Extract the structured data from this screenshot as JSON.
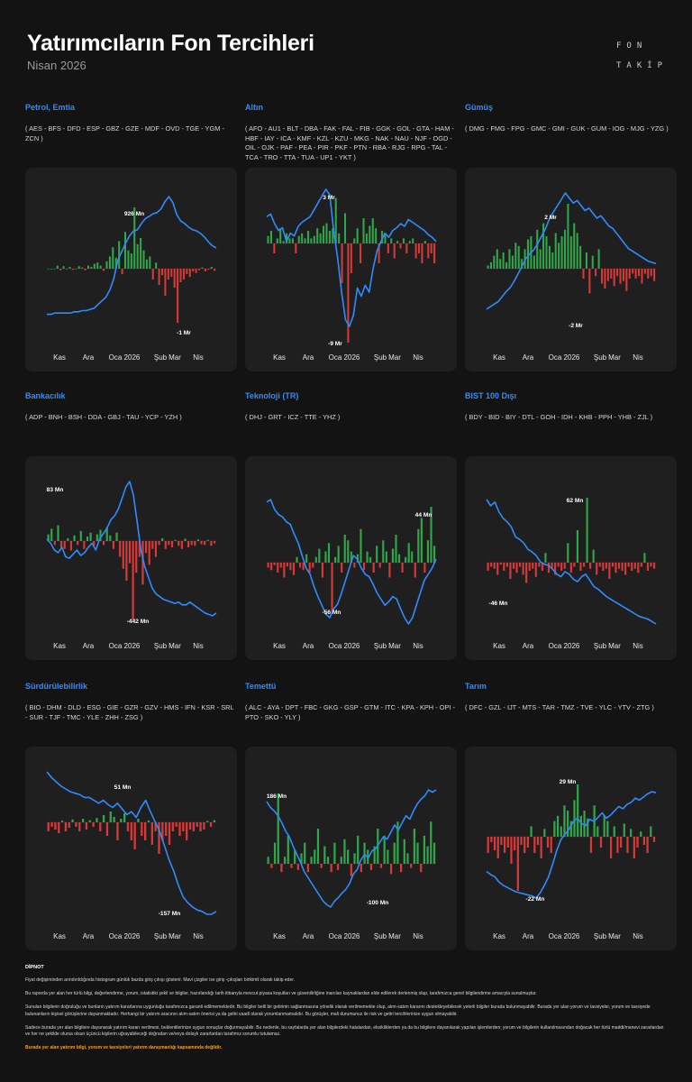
{
  "header": {
    "title": "Yatırımcıların Fon Tercihleri",
    "subtitle": "Nisan 2026",
    "logo": [
      "FON",
      "TAKİP"
    ]
  },
  "colors": {
    "line": "#2f8cff",
    "inflow": "#2fa84a",
    "outflow": "#d83a3a",
    "title_accent": "#2f8cff",
    "warning": "#f7a21b"
  },
  "chart_data": [
    {
      "type": "bar+line",
      "name": "Petrol, Emtia",
      "codes": "( AES - BFS - DFD - ESP - GBZ - GZE - MDF - OVD - TGE - YGM - ZCN )",
      "x_ticks": [
        "Kas",
        "Ara",
        "Oca 2026",
        "Şub",
        "Mar",
        "Nis"
      ],
      "max_label": "926 Mn",
      "min_label": "-1 Mr",
      "cumulative_trend": [
        0.04,
        0.06,
        0.08,
        0.14,
        0.22,
        0.48,
        0.72,
        0.8,
        0.98,
        0.62,
        0.56
      ],
      "daily_flow_pattern": "zero until Dec, growth through Jan, large inflows Jan-Feb, large outflows late Feb",
      "bars": [
        0,
        0,
        0,
        0.05,
        -0.03,
        0.04,
        0,
        0.03,
        -0.02,
        0,
        0.04,
        0.02,
        -0.03,
        0.05,
        0.03,
        0.08,
        0.1,
        0.05,
        -0.04,
        0.12,
        0.2,
        0.35,
        0.18,
        0.45,
        -0.1,
        0.6,
        0.3,
        0.25,
        1.0,
        0.4,
        0.5,
        0.3,
        0.15,
        0.2,
        -0.2,
        0.1,
        -0.3,
        -0.12,
        -0.5,
        -0.2,
        -0.15,
        -0.35,
        -1.0,
        -0.25,
        -0.2,
        -0.1,
        -0.15,
        -0.05,
        -0.08,
        -0.03,
        0.02,
        -0.05,
        -0.02,
        0.03,
        -0.04
      ],
      "line": [
        0.04,
        0.04,
        0.05,
        0.05,
        0.05,
        0.05,
        0.05,
        0.06,
        0.06,
        0.07,
        0.07,
        0.08,
        0.09,
        0.12,
        0.15,
        0.18,
        0.24,
        0.33,
        0.48,
        0.55,
        0.62,
        0.68,
        0.72,
        0.73,
        0.78,
        0.82,
        0.84,
        0.86,
        0.87,
        0.9,
        0.96,
        1.0,
        0.95,
        0.85,
        0.8,
        0.78,
        0.75,
        0.73,
        0.72,
        0.7,
        0.67,
        0.63,
        0.6,
        0.58
      ]
    },
    {
      "type": "bar+line",
      "name": "Altın",
      "codes": "( AFO - AU1 - BLT - DBA - FAK - FAL - FIB - GGK - GOL - GTA - HAM - HBF - IAY - ICA - KMF - KZL - KZU - MKG - NAK - NAU - NJF - OGD - OIL - OJK - PAF - PEA - PIR - PKF - PTN - RBA - RJG - RPG - TAL - TCA - TRO - TTA - TUA - UP1 - YKT )",
      "x_ticks": [
        "Kas",
        "Ara",
        "Oca 2026",
        "Şub",
        "Mar",
        "Nis"
      ],
      "max_label": "3 Mr",
      "min_label": "-9 Mr",
      "bars": [
        0.15,
        0.25,
        -0.1,
        0.1,
        0.3,
        0.05,
        0.2,
        0.1,
        0.1,
        -0.1,
        0.15,
        0.2,
        0.1,
        0.25,
        0.1,
        0.15,
        0.3,
        0.2,
        0.35,
        0.4,
        0.25,
        0.3,
        0.9,
        0.2,
        -0.4,
        0.6,
        -1.0,
        -0.3,
        0.1,
        0.3,
        -0.2,
        0.5,
        0.2,
        0.35,
        0.5,
        0.3,
        -0.2,
        0.25,
        0.2,
        -0.1,
        0.1,
        -0.15,
        0.05,
        -0.05,
        0.1,
        -0.1,
        0.05,
        0.1,
        -0.15,
        -0.1,
        -0.2,
        0.05,
        -0.15,
        -0.1,
        -0.2
      ],
      "line": [
        0.8,
        0.82,
        0.75,
        0.7,
        0.72,
        0.62,
        0.68,
        0.66,
        0.73,
        0.76,
        0.78,
        0.8,
        0.85,
        0.9,
        0.95,
        1.0,
        0.96,
        0.7,
        0.5,
        0.25,
        0.05,
        0.0,
        0.08,
        0.28,
        0.22,
        0.3,
        0.25,
        0.42,
        0.55,
        0.62,
        0.68,
        0.65,
        0.7,
        0.72,
        0.75,
        0.73,
        0.78,
        0.76,
        0.74,
        0.72,
        0.7,
        0.67,
        0.65,
        0.62
      ]
    },
    {
      "type": "bar+line",
      "name": "Gümüş",
      "codes": "( DMG - FMG - FPG - GMC - GMI - GUK - GUM - IOG - MJG - YZG )",
      "x_ticks": [
        "Kas",
        "Ara",
        "Oca 2026",
        "Şub",
        "Mar",
        "Nis"
      ],
      "max_label": "2 Mr",
      "min_label": "-2 Mr",
      "bars": [
        0.05,
        0.1,
        0.2,
        0.3,
        0.15,
        0.25,
        0.1,
        0.3,
        0.2,
        0.4,
        0.35,
        0.15,
        0.3,
        0.45,
        0.5,
        0.2,
        0.6,
        0.3,
        0.7,
        0.5,
        0.35,
        0.25,
        0.55,
        0.4,
        0.5,
        0.6,
        1.0,
        0.5,
        0.7,
        0.55,
        0.35,
        -0.2,
        0.25,
        -0.5,
        0.2,
        -0.15,
        0.3,
        -0.3,
        -0.4,
        -0.25,
        -0.2,
        -0.35,
        -0.15,
        -0.3,
        -0.25,
        -0.45,
        -0.2,
        -0.1,
        -0.2,
        -0.15,
        -0.3,
        -0.1,
        -0.2,
        -0.15,
        -0.25
      ],
      "line": [
        0.08,
        0.1,
        0.12,
        0.14,
        0.18,
        0.22,
        0.25,
        0.3,
        0.36,
        0.42,
        0.48,
        0.52,
        0.55,
        0.6,
        0.66,
        0.72,
        0.8,
        0.85,
        0.9,
        0.95,
        1.0,
        0.96,
        0.92,
        0.94,
        0.9,
        0.86,
        0.88,
        0.84,
        0.8,
        0.82,
        0.78,
        0.74,
        0.72,
        0.68,
        0.64,
        0.6,
        0.56,
        0.54,
        0.52,
        0.5,
        0.48,
        0.46,
        0.45,
        0.44
      ]
    },
    {
      "type": "bar+line",
      "name": "Bankacılık",
      "codes": "( ADP - BNH - BSH - DDA - GBJ - TAU - YCP - YZH )",
      "x_ticks": [
        "Kas",
        "Ara",
        "Oca 2026",
        "Şub",
        "Mar",
        "Nis"
      ],
      "max_label": "83 Mn",
      "min_label": "-442 Mn",
      "bars": [
        0.12,
        0.22,
        -0.05,
        0.28,
        -0.08,
        -0.1,
        0.05,
        -0.12,
        0.1,
        -0.05,
        0.18,
        -0.1,
        0.08,
        0.15,
        -0.06,
        0.12,
        0.2,
        -0.05,
        0.25,
        0.1,
        -0.1,
        0.15,
        -0.2,
        -0.35,
        -0.5,
        -0.28,
        -1.0,
        -0.4,
        -0.2,
        -0.55,
        -0.15,
        -0.3,
        -0.1,
        -0.2,
        -0.05,
        0.05,
        -0.1,
        -0.05,
        -0.08,
        0.02,
        -0.06,
        -0.1,
        0.04,
        -0.08,
        -0.05,
        -0.06,
        0.03,
        -0.04,
        -0.05,
        0.02,
        -0.06,
        -0.03
      ],
      "line": [
        0.58,
        0.55,
        0.5,
        0.48,
        0.52,
        0.45,
        0.44,
        0.47,
        0.5,
        0.46,
        0.48,
        0.52,
        0.55,
        0.5,
        0.58,
        0.62,
        0.66,
        0.72,
        0.75,
        0.8,
        0.88,
        0.96,
        1.0,
        0.9,
        0.7,
        0.5,
        0.38,
        0.3,
        0.22,
        0.18,
        0.16,
        0.14,
        0.13,
        0.12,
        0.11,
        0.12,
        0.1,
        0.1,
        0.12,
        0.1,
        0.08,
        0.06,
        0.04,
        0.03,
        0.02,
        0.04
      ]
    },
    {
      "type": "bar+line",
      "name": "Teknoloji (TR)",
      "codes": "( DHJ - GRT - ICZ - TTE - YHZ )",
      "x_ticks": [
        "Kas",
        "Ara",
        "Oca 2026",
        "Şub",
        "Mar",
        "Nis"
      ],
      "max_label": "44 Mn",
      "min_label": "-56 Mn",
      "bars": [
        -0.1,
        -0.15,
        -0.05,
        -0.2,
        -0.1,
        -0.3,
        -0.08,
        -0.15,
        -0.25,
        0.1,
        -0.1,
        -0.15,
        0.15,
        -0.2,
        -0.1,
        0.1,
        0.25,
        -0.3,
        0.2,
        0.35,
        -1.0,
        0.1,
        0.3,
        -0.2,
        0.5,
        0.4,
        0.2,
        -0.1,
        0.15,
        0.6,
        -0.15,
        0.2,
        0.1,
        -0.2,
        0.3,
        -0.1,
        0.4,
        0.2,
        -0.3,
        0.25,
        0.5,
        0.15,
        -0.2,
        0.1,
        0.35,
        0.2,
        -0.3,
        0.6,
        0.8,
        -0.2,
        0.4,
        1.0,
        0.3
      ],
      "line": [
        0.98,
        1.0,
        0.92,
        0.88,
        0.86,
        0.82,
        0.8,
        0.72,
        0.65,
        0.55,
        0.45,
        0.4,
        0.3,
        0.22,
        0.15,
        0.08,
        0.05,
        0.12,
        0.16,
        0.25,
        0.35,
        0.45,
        0.55,
        0.52,
        0.45,
        0.4,
        0.38,
        0.32,
        0.25,
        0.2,
        0.15,
        0.18,
        0.22,
        0.2,
        0.12,
        0.05,
        0.0,
        0.05,
        0.15,
        0.25,
        0.35,
        0.4,
        0.45,
        0.52
      ]
    },
    {
      "type": "bar+line",
      "name": "BIST 100 Dışı",
      "codes": "( BDY - BID - BIY - DTL - GOH - IDH - KHB - PPH - YHB - ZJL )",
      "x_ticks": [
        "Kas",
        "Ara",
        "Oca 2026",
        "Şub",
        "Mar",
        "Nis"
      ],
      "max_label": "62 Mn",
      "min_label": "-46 Mn",
      "bars": [
        -0.2,
        -0.1,
        -0.15,
        -0.3,
        -0.05,
        -0.2,
        -0.1,
        -0.4,
        -0.15,
        -0.25,
        -0.1,
        -0.3,
        -0.5,
        -0.2,
        -0.15,
        -0.35,
        -0.1,
        -0.2,
        0.15,
        -0.25,
        -0.15,
        -0.3,
        -0.1,
        -0.2,
        -0.15,
        0.3,
        -0.25,
        -0.1,
        0.5,
        -0.2,
        -0.1,
        1.0,
        -0.15,
        0.2,
        -0.3,
        -0.1,
        -0.2,
        -0.15,
        -0.4,
        -0.1,
        -0.25,
        -0.15,
        -0.2,
        -0.3,
        -0.1,
        -0.2,
        -0.15,
        -0.25,
        -0.1,
        0.15,
        -0.2,
        -0.1,
        -0.15
      ],
      "line": [
        1.0,
        0.95,
        0.98,
        0.9,
        0.85,
        0.82,
        0.78,
        0.7,
        0.68,
        0.65,
        0.6,
        0.58,
        0.55,
        0.5,
        0.48,
        0.47,
        0.44,
        0.4,
        0.38,
        0.42,
        0.4,
        0.36,
        0.34,
        0.38,
        0.4,
        0.35,
        0.3,
        0.28,
        0.25,
        0.22,
        0.2,
        0.18,
        0.16,
        0.14,
        0.12,
        0.1,
        0.08,
        0.06,
        0.05,
        0.04,
        0.02,
        0.0
      ]
    },
    {
      "type": "bar+line",
      "name": "Sürdürülebilirlik",
      "codes": "( BIO - DHM - DLD - ESG - GIE - GZR - GZV - HMS - IFN - KSR - SRL - SUR - TJF - TMC - YLE - ZHH - ZSG )",
      "x_ticks": [
        "Kas",
        "Ara",
        "Oca 2026",
        "Şub",
        "Mar",
        "Nis"
      ],
      "max_label": "51 Mn",
      "min_label": "-157 Mn",
      "bars": [
        -0.1,
        -0.05,
        -0.08,
        -0.12,
        0.05,
        -0.1,
        -0.06,
        0.08,
        -0.05,
        -0.1,
        0.1,
        -0.08,
        0.06,
        -0.05,
        0.12,
        -0.1,
        0.2,
        -0.15,
        0.3,
        0.15,
        -0.2,
        0.1,
        0.25,
        -0.1,
        -0.2,
        -0.3,
        0.1,
        -0.15,
        -0.2,
        0.05,
        -0.25,
        -0.1,
        -0.35,
        -0.2,
        -0.15,
        -0.25,
        -0.1,
        -0.05,
        -0.15,
        -0.1,
        -0.2,
        -0.08,
        -0.1,
        -0.05,
        -0.1,
        -0.08,
        0.04,
        -0.05,
        0.06
      ],
      "line": [
        1.0,
        0.96,
        0.93,
        0.9,
        0.88,
        0.86,
        0.85,
        0.84,
        0.82,
        0.82,
        0.8,
        0.78,
        0.8,
        0.77,
        0.75,
        0.78,
        0.74,
        0.7,
        0.72,
        0.68,
        0.75,
        0.8,
        0.72,
        0.65,
        0.58,
        0.48,
        0.38,
        0.3,
        0.2,
        0.12,
        0.08,
        0.05,
        0.03,
        0.02,
        0.0,
        0.0,
        0.02
      ]
    },
    {
      "type": "bar+line",
      "name": "Temettü",
      "codes": "( ALC - AYA - DPT - FBC - GKG - GSP - GTM - ITC - KPA - KPH - OPI - PTO - SKO - YLY )",
      "x_ticks": [
        "Kas",
        "Ara",
        "Oca 2026",
        "Şub",
        "Mar",
        "Nis"
      ],
      "max_label": "186 Mn",
      "min_label": "-100 Mn",
      "bars": [
        0.1,
        -0.1,
        0.3,
        1.0,
        -0.2,
        0.1,
        0.4,
        -0.1,
        0.2,
        -0.15,
        0.15,
        0.3,
        -0.2,
        0.1,
        0.2,
        0.5,
        -0.1,
        0.25,
        0.1,
        -0.2,
        0.3,
        -0.15,
        0.1,
        0.35,
        0.2,
        -0.3,
        0.15,
        0.4,
        -0.2,
        0.3,
        0.2,
        -0.15,
        0.25,
        0.5,
        -0.1,
        0.4,
        0.2,
        -0.25,
        0.3,
        0.6,
        -0.2,
        0.35,
        0.15,
        -0.1,
        0.5,
        0.3,
        -0.2,
        0.4,
        0.25,
        0.6,
        0.3
      ],
      "line": [
        0.9,
        0.85,
        0.82,
        0.78,
        0.72,
        0.65,
        0.6,
        0.52,
        0.45,
        0.38,
        0.3,
        0.25,
        0.2,
        0.15,
        0.1,
        0.05,
        0.02,
        0.0,
        0.05,
        0.08,
        0.12,
        0.15,
        0.2,
        0.28,
        0.32,
        0.4,
        0.45,
        0.42,
        0.48,
        0.5,
        0.55,
        0.6,
        0.58,
        0.64,
        0.7,
        0.66,
        0.72,
        0.78,
        0.75,
        0.82,
        0.88,
        0.92,
        0.95,
        1.0,
        0.98,
        1.0
      ]
    },
    {
      "type": "bar+line",
      "name": "Tarım",
      "codes": "( DFC - GZL - IJT - MTS - TAR - TMZ - TVE - YLC - YTV - ZTG )",
      "x_ticks": [
        "Kas",
        "Ara",
        "Oca 2026",
        "Şub",
        "Mar",
        "Nis"
      ],
      "max_label": "29 Mn",
      "min_label": "-22 Mn",
      "bars": [
        -0.3,
        -0.1,
        -0.25,
        -0.4,
        -0.15,
        -0.3,
        -0.2,
        -0.5,
        -0.25,
        -1.0,
        -0.15,
        -0.3,
        -0.2,
        0.2,
        -0.3,
        -0.15,
        -0.4,
        0.15,
        -0.2,
        -0.3,
        0.3,
        0.4,
        0.2,
        0.6,
        0.5,
        0.3,
        0.7,
        1.0,
        0.4,
        0.5,
        0.35,
        -0.3,
        0.6,
        0.2,
        -0.2,
        0.4,
        0.3,
        -0.4,
        0.2,
        -0.3,
        -0.2,
        0.25,
        -0.3,
        0.15,
        -0.4,
        -0.2,
        0.1,
        -0.15,
        -0.3,
        0.2,
        -0.1
      ],
      "line": [
        0.25,
        0.22,
        0.2,
        0.15,
        0.12,
        0.1,
        0.08,
        0.06,
        0.05,
        0.04,
        0.03,
        0.02,
        0.0,
        0.05,
        0.12,
        0.2,
        0.32,
        0.45,
        0.55,
        0.6,
        0.65,
        0.72,
        0.75,
        0.7,
        0.68,
        0.74,
        0.72,
        0.76,
        0.8,
        0.75,
        0.78,
        0.82,
        0.86,
        0.84,
        0.88,
        0.9,
        0.94,
        0.92,
        0.95,
        0.98,
        1.0,
        0.99
      ]
    }
  ],
  "footnote": {
    "title": "DİPNOT",
    "p1": "Fiyat değişiminden arındırıldığında histogram günlük bazda giriş çıkışı gösterir. Mavi çizgiler ise giriş -çıkışları birikimli olarak takip eder.",
    "p2": "Bu raporda yer alan her türlü bilgi, değerlendirme, yorum, istatistiki şekil ve bilgiler, hazırlandığı tarih itibarıyla mevcut piyasa koşulları ve güvenilirliğine inanılan kaynaklardan elde edilerek derlenmiş olup, tarafımızca genel bilgilendirme amacıyla sunulmuştur.",
    "p3": "Sunulan bilgilerin doğruluğu ve bunların yatırım kararlarına uygunluğu tarafımızca garanti edilmemektedir. Bu bilgiler belli bir getirinin sağlanmasına yönelik olarak verilmemekte olup, alım-satım kararını destekleyebilecek yeterli bilgiler burada bulunmayabilir. Burada yer alan yorum ve tavsiyeler, yorum ve tavsiyede bulunanların kişisel görüşlerine dayanmaktadır. Herhangi bir yatırım aracının alım-satım önerisi ya da getiri vaadi olarak yorumlanmamalıdır. Bu görüşler, mali durumunuz ile risk ve getiri tercihlerinize uygun olmayabilir.",
    "p4": "Sadece burada yer alan bilgilere dayanarak yatırım kararı verilmesi, beklentilerinize uygun sonuçlar doğurmayabilir. Bu nedenle, bu sayfalarda yer alan bilgilerdeki hatalardan, eksikliklerden ya da bu bilgilere dayanılarak yapılan işlemlerden; yorum ve bilgilerin kullanılmasından doğacak her türlü maddi/manevi zararlardan ve her ne şekilde olursa olsun üçüncü kişilerin uğrayabileceği doğrudan ve/veya dolaylı zararlardan tarafımız sorumlu tutulamaz.",
    "warning": "Burada yer alan yatırım bilgi, yorum ve tavsiyeleri yatırım danışmanlığı kapsamında değildir."
  }
}
